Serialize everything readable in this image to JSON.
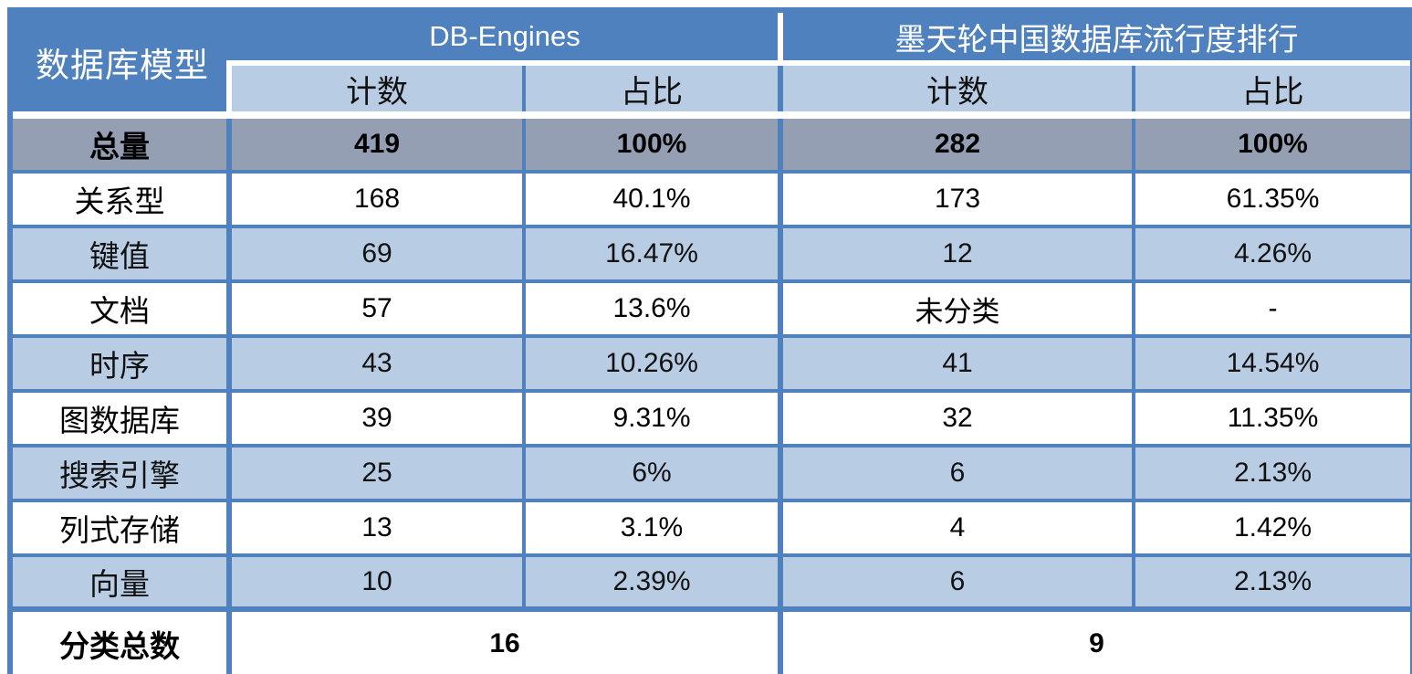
{
  "chart_data": {
    "type": "table",
    "corner_header": "数据库模型",
    "column_groups": [
      {
        "label": "DB-Engines",
        "columns": [
          "计数",
          "占比"
        ]
      },
      {
        "label": "墨天轮中国数据库流行度排行",
        "columns": [
          "计数",
          "占比"
        ]
      }
    ],
    "total_row": {
      "label": "总量",
      "values": [
        "419",
        "100%",
        "282",
        "100%"
      ]
    },
    "rows": [
      {
        "label": "关系型",
        "values": [
          "168",
          "40.1%",
          "173",
          "61.35%"
        ]
      },
      {
        "label": "键值",
        "values": [
          "69",
          "16.47%",
          "12",
          "4.26%"
        ]
      },
      {
        "label": "文档",
        "values": [
          "57",
          "13.6%",
          "未分类",
          "-"
        ]
      },
      {
        "label": "时序",
        "values": [
          "43",
          "10.26%",
          "41",
          "14.54%"
        ]
      },
      {
        "label": "图数据库",
        "values": [
          "39",
          "9.31%",
          "32",
          "11.35%"
        ]
      },
      {
        "label": "搜索引擎",
        "values": [
          "25",
          "6%",
          "6",
          "2.13%"
        ]
      },
      {
        "label": "列式存储",
        "values": [
          "13",
          "3.1%",
          "4",
          "1.42%"
        ]
      },
      {
        "label": "向量",
        "values": [
          "10",
          "2.39%",
          "6",
          "2.13%"
        ]
      }
    ],
    "footer_row": {
      "label": "分类总数",
      "values": [
        "16",
        "9"
      ]
    },
    "colors": {
      "header_blue": "#4E81BD",
      "light_blue": "#B8CCE4",
      "total_row_gray": "#949FB4",
      "row_white": "#FFFFFF",
      "header_text": "#FFFFFF",
      "body_text": "#000000"
    }
  }
}
